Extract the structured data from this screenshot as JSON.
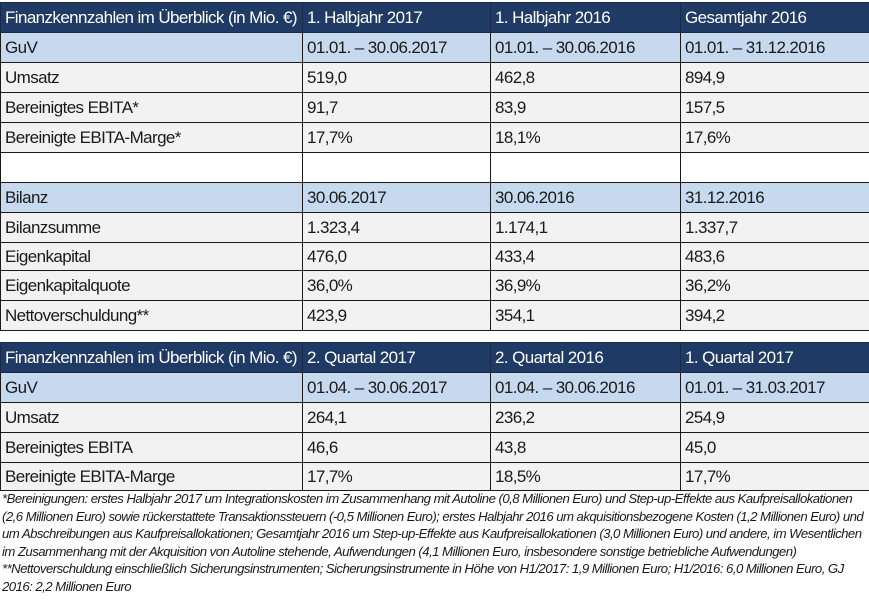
{
  "table1": {
    "header": [
      "Finanzkennzahlen im Überblick (in Mio. €)",
      "1. Halbjahr 2017",
      "1. Halbjahr 2016",
      "Gesamtjahr 2016"
    ],
    "rows": [
      [
        "GuV",
        "01.01. – 30.06.2017",
        "01.01. – 30.06.2016",
        "01.01. – 31.12.2016"
      ],
      [
        "Umsatz",
        "519,0",
        "462,8",
        "894,9"
      ],
      [
        "Bereinigtes EBITA*",
        "91,7",
        "83,9",
        "157,5"
      ],
      [
        "Bereinigte EBITA-Marge*",
        "17,7%",
        "18,1%",
        "17,6%"
      ],
      [
        "",
        "",
        "",
        ""
      ],
      [
        "Bilanz",
        "30.06.2017",
        "30.06.2016",
        "31.12.2016"
      ],
      [
        "Bilanzsumme",
        "1.323,4",
        "1.174,1",
        "1.337,7"
      ],
      [
        "Eigenkapital",
        "476,0",
        "433,4",
        "483,6"
      ],
      [
        "Eigenkapitalquote",
        "36,0%",
        "36,9%",
        "36,2%"
      ],
      [
        "Nettoverschuldung**",
        "423,9",
        "354,1",
        "394,2"
      ]
    ]
  },
  "table2": {
    "header": [
      "Finanzkennzahlen im Überblick (in Mio. €)",
      "2. Quartal 2017",
      "2. Quartal 2016",
      "1. Quartal 2017"
    ],
    "rows": [
      [
        "GuV",
        "01.04. – 30.06.2017",
        "01.04. – 30.06.2016",
        "01.01. – 31.03.2017"
      ],
      [
        "Umsatz",
        "264,1",
        "236,2",
        "254,9"
      ],
      [
        "Bereinigtes EBITA",
        "46,6",
        "43,8",
        "45,0"
      ],
      [
        "Bereinigte EBITA-Marge",
        "17,7%",
        "18,5%",
        "17,7%"
      ]
    ]
  },
  "footnotes": [
    "*Bereinigungen: erstes Halbjahr 2017 um Integrationskosten im Zusammenhang mit Autoline (0,8 Millionen Euro) und Step-up-Effekte aus Kaufpreisallokationen (2,6 Millionen Euro) sowie rückerstattete Transaktionssteuern (-0,5 Millionen Euro); erstes Halbjahr 2016 um akquisitionsbezogene Kosten (1,2 Millionen Euro) und um Abschreibungen aus Kaufpreisallokationen; Gesamtjahr 2016 um Step-up-Effekte aus Kaufpreisallokationen (3,0 Millionen Euro) und andere, im Wesentlichen im Zusammenhang mit der Akquisition von Autoline stehende, Aufwendungen (4,1 Millionen Euro, insbesondere sonstige betriebliche Aufwendungen)",
    "**Nettoverschuldung einschließlich Sicherungsinstrumenten; Sicherungsinstrumente in Höhe von H1/2017: 1,9 Millionen Euro; H1/2016: 6,0 Millionen Euro, GJ 2016: 2,2 Millionen Euro"
  ],
  "colors": {
    "header_bg": "#1f3a64",
    "section_bg": "#c6d9ef"
  }
}
